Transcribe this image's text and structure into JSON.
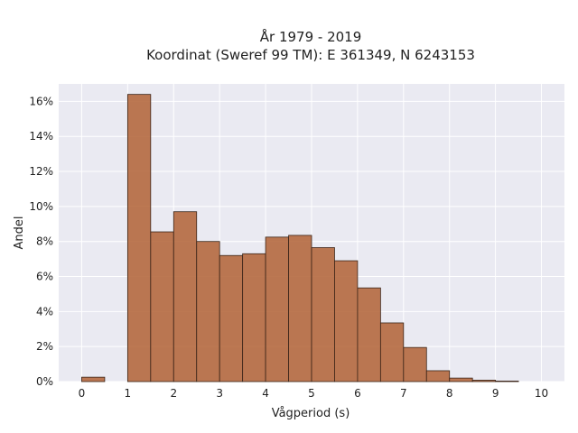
{
  "chart_data": {
    "type": "bar",
    "title_lines": [
      "År 1979 - 2019",
      "Koordinat (Sweref 99 TM): E 361349, N 6243153"
    ],
    "xlabel": "Vågperiod (s)",
    "ylabel": "Andel",
    "xlim": [
      -0.5,
      10.5
    ],
    "ylim": [
      0,
      17
    ],
    "x_ticks": [
      0,
      1,
      2,
      3,
      4,
      5,
      6,
      7,
      8,
      9,
      10
    ],
    "x_tick_labels": [
      "0",
      "1",
      "2",
      "3",
      "4",
      "5",
      "6",
      "7",
      "8",
      "9",
      "10"
    ],
    "y_ticks": [
      0,
      2,
      4,
      6,
      8,
      10,
      12,
      14,
      16
    ],
    "y_tick_labels": [
      "0%",
      "2%",
      "4%",
      "6%",
      "8%",
      "10%",
      "12%",
      "14%",
      "16%"
    ],
    "grid": true,
    "bar_color": "#b5693f",
    "bar_edge_color": "#3a2418",
    "background_color": "#eaeaf2",
    "bins": [
      {
        "start": 0.0,
        "end": 0.5,
        "value": 0.25
      },
      {
        "start": 1.0,
        "end": 1.5,
        "value": 16.4
      },
      {
        "start": 1.5,
        "end": 2.0,
        "value": 8.55
      },
      {
        "start": 2.0,
        "end": 2.5,
        "value": 9.7
      },
      {
        "start": 2.5,
        "end": 3.0,
        "value": 8.0
      },
      {
        "start": 3.0,
        "end": 3.5,
        "value": 7.2
      },
      {
        "start": 3.5,
        "end": 4.0,
        "value": 7.3
      },
      {
        "start": 4.0,
        "end": 4.5,
        "value": 8.25
      },
      {
        "start": 4.5,
        "end": 5.0,
        "value": 8.35
      },
      {
        "start": 5.0,
        "end": 5.5,
        "value": 7.65
      },
      {
        "start": 5.5,
        "end": 6.0,
        "value": 6.9
      },
      {
        "start": 6.0,
        "end": 6.5,
        "value": 5.35
      },
      {
        "start": 6.5,
        "end": 7.0,
        "value": 3.35
      },
      {
        "start": 7.0,
        "end": 7.5,
        "value": 1.95
      },
      {
        "start": 7.5,
        "end": 8.0,
        "value": 0.62
      },
      {
        "start": 8.0,
        "end": 8.5,
        "value": 0.2
      },
      {
        "start": 8.5,
        "end": 9.0,
        "value": 0.08
      },
      {
        "start": 9.0,
        "end": 9.5,
        "value": 0.03
      }
    ]
  }
}
